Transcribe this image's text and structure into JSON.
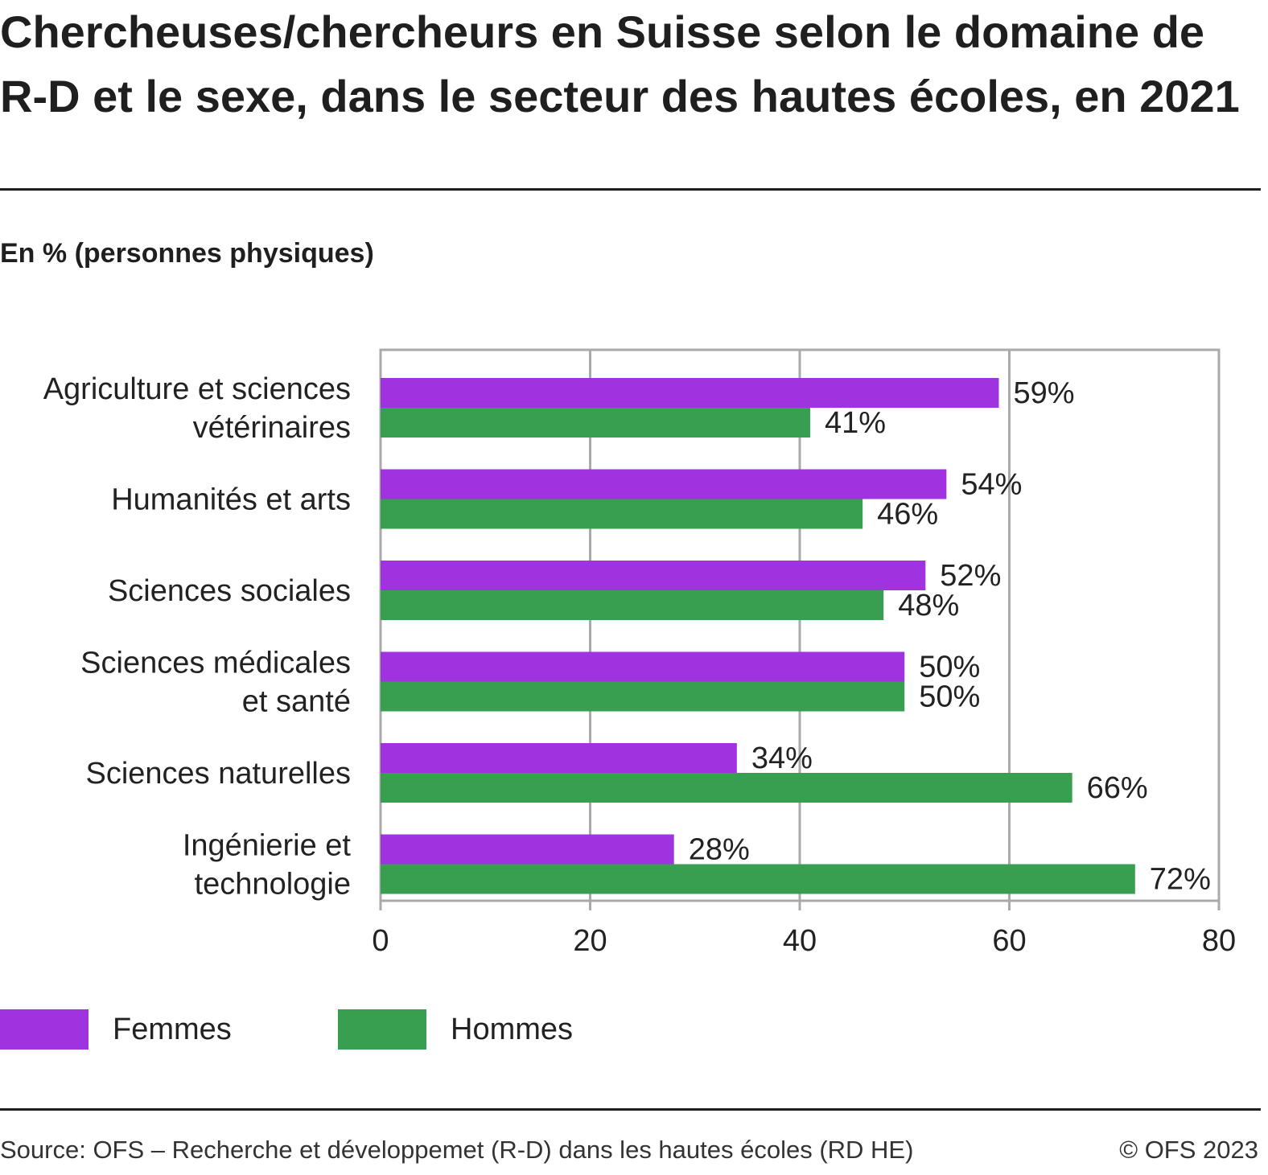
{
  "title": "Chercheuses/chercheurs en Suisse selon le domaine de R-D et le sexe, dans le secteur des hautes écoles, en 2021",
  "subtitle": "En % (personnes physiques)",
  "colors": {
    "femmes": "#a033e0",
    "hommes": "#389e50",
    "grid": "#aaaaaa",
    "text": "#222222"
  },
  "chart_data": {
    "type": "bar",
    "orientation": "horizontal",
    "title": "Chercheuses/chercheurs en Suisse selon le domaine de R-D et le sexe, dans le secteur des hautes écoles, en 2021",
    "subtitle": "En % (personnes physiques)",
    "categories": [
      [
        "Agriculture et sciences",
        "vétérinaires"
      ],
      [
        "Humanités et arts"
      ],
      [
        "Sciences sociales"
      ],
      [
        "Sciences médicales",
        "et santé"
      ],
      [
        "Sciences naturelles"
      ],
      [
        "Ingénierie et",
        "technologie"
      ]
    ],
    "series": [
      {
        "name": "Femmes",
        "values": [
          59,
          54,
          52,
          50,
          34,
          28
        ],
        "labels": [
          "59%",
          "54%",
          "52%",
          "50%",
          "34%",
          "28%"
        ]
      },
      {
        "name": "Hommes",
        "values": [
          41,
          46,
          48,
          50,
          66,
          72
        ],
        "labels": [
          "41%",
          "46%",
          "48%",
          "50%",
          "66%",
          "72%"
        ]
      }
    ],
    "xlim": [
      0,
      80
    ],
    "xticks": [
      "0",
      "20",
      "40",
      "60",
      "80"
    ],
    "grid": true,
    "legend_position": "bottom-left"
  },
  "legend": [
    {
      "label": "Femmes",
      "color": "#a033e0"
    },
    {
      "label": "Hommes",
      "color": "#389e50"
    }
  ],
  "source": "Source: OFS – Recherche et développemet (R-D) dans les hautes écoles (RD HE)",
  "copyright": "© OFS 2023"
}
